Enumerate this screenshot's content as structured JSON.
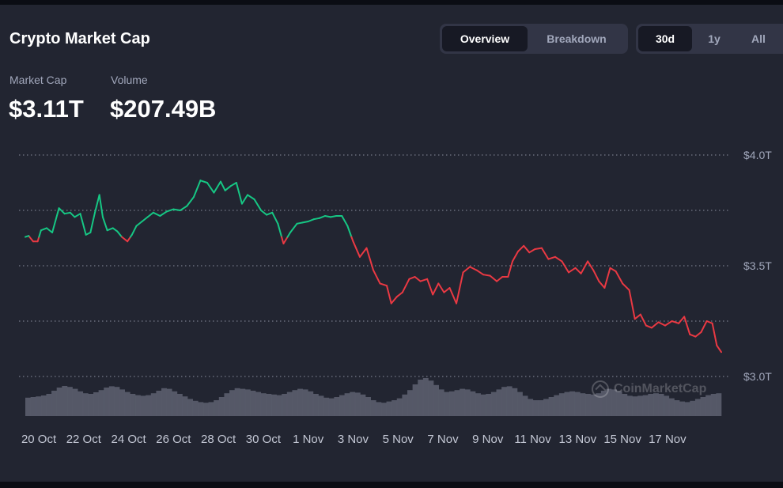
{
  "header": {
    "title": "Crypto Market Cap",
    "view_tabs": [
      {
        "label": "Overview",
        "active": true
      },
      {
        "label": "Breakdown",
        "active": false
      }
    ],
    "range_tabs": [
      {
        "label": "30d",
        "active": true
      },
      {
        "label": "1y",
        "active": false
      },
      {
        "label": "All",
        "active": false
      }
    ]
  },
  "metrics": {
    "market_cap": {
      "label": "Market Cap",
      "value": "$3.11T"
    },
    "volume": {
      "label": "Volume",
      "value": "$207.49B"
    }
  },
  "watermark": {
    "text": "CoinMarketCap",
    "icon": "coinmarketcap-logo-icon"
  },
  "colors": {
    "background": "#222531",
    "up": "#16c784",
    "down": "#ea3943",
    "volume": "#5b5e6e",
    "grid": "#8a8f9f",
    "text_muted": "#a1a7bb"
  },
  "chart_data": {
    "type": "line",
    "baseline": 3.63,
    "y_tick_labels": [
      "$4.0T",
      "$3.5T",
      "$3.0T"
    ],
    "y_tick_values": [
      4.0,
      3.5,
      3.0
    ],
    "ylim": [
      3.0,
      4.0
    ],
    "x_tick_labels": [
      "20 Oct",
      "22 Oct",
      "24 Oct",
      "26 Oct",
      "28 Oct",
      "30 Oct",
      "1 Nov",
      "3 Nov",
      "5 Nov",
      "7 Nov",
      "9 Nov",
      "11 Nov",
      "13 Nov",
      "15 Nov",
      "17 Nov"
    ],
    "xlim": [
      -0.6,
      30.4
    ],
    "grid": true,
    "series": [
      {
        "x": [
          -0.6,
          -0.45,
          -0.25,
          -0.05,
          0.1,
          0.35,
          0.6,
          0.9,
          1.15,
          1.4,
          1.6,
          1.85,
          2.1,
          2.3,
          2.5,
          2.7,
          2.85,
          3.05,
          3.3,
          3.5,
          3.7,
          3.95,
          4.15,
          4.35,
          4.6,
          4.85,
          5.1,
          5.4,
          5.7,
          6.0,
          6.3,
          6.6,
          6.9,
          7.2,
          7.5,
          7.8,
          8.1,
          8.3,
          8.55,
          8.8,
          9.05,
          9.3,
          9.6,
          9.9,
          10.15,
          10.4,
          10.65,
          10.9,
          11.2,
          11.5,
          11.75,
          12.0,
          12.25,
          12.5,
          12.75,
          13.0,
          13.25,
          13.5,
          13.75,
          14.0,
          14.3,
          14.6,
          14.9,
          15.2,
          15.5,
          15.7,
          15.95,
          16.2,
          16.5,
          16.75,
          17.0,
          17.3,
          17.55,
          17.8,
          18.05,
          18.3,
          18.6,
          18.9,
          19.2,
          19.5,
          19.8,
          20.1,
          20.4,
          20.65,
          20.9,
          21.1,
          21.35,
          21.6,
          21.85,
          22.1,
          22.4,
          22.7,
          23.0,
          23.3,
          23.6,
          23.9,
          24.15,
          24.45,
          24.7,
          24.95,
          25.2,
          25.45,
          25.7,
          26.0,
          26.3,
          26.55,
          26.8,
          27.05,
          27.3,
          27.6,
          27.9,
          28.2,
          28.5,
          28.75,
          29.0,
          29.25,
          29.5,
          29.75,
          30.0,
          30.2,
          30.4
        ],
        "y": [
          3.63,
          3.635,
          3.61,
          3.61,
          3.66,
          3.67,
          3.65,
          3.76,
          3.735,
          3.74,
          3.72,
          3.735,
          3.64,
          3.65,
          3.74,
          3.82,
          3.72,
          3.66,
          3.67,
          3.655,
          3.63,
          3.61,
          3.64,
          3.68,
          3.7,
          3.72,
          3.74,
          3.725,
          3.745,
          3.755,
          3.75,
          3.77,
          3.81,
          3.885,
          3.875,
          3.83,
          3.88,
          3.84,
          3.86,
          3.875,
          3.78,
          3.82,
          3.8,
          3.75,
          3.73,
          3.74,
          3.69,
          3.6,
          3.65,
          3.69,
          3.695,
          3.7,
          3.71,
          3.715,
          3.725,
          3.72,
          3.725,
          3.725,
          3.68,
          3.61,
          3.54,
          3.58,
          3.48,
          3.42,
          3.41,
          3.33,
          3.36,
          3.38,
          3.44,
          3.45,
          3.43,
          3.44,
          3.37,
          3.42,
          3.38,
          3.4,
          3.33,
          3.47,
          3.495,
          3.48,
          3.46,
          3.455,
          3.43,
          3.45,
          3.45,
          3.52,
          3.565,
          3.59,
          3.56,
          3.575,
          3.58,
          3.53,
          3.54,
          3.52,
          3.47,
          3.49,
          3.465,
          3.52,
          3.48,
          3.43,
          3.4,
          3.49,
          3.475,
          3.42,
          3.39,
          3.26,
          3.28,
          3.23,
          3.22,
          3.245,
          3.23,
          3.25,
          3.24,
          3.27,
          3.19,
          3.18,
          3.2,
          3.25,
          3.24,
          3.14,
          3.11
        ]
      }
    ],
    "volume_relative": [
      0.38,
      0.4,
      0.42,
      0.45,
      0.5,
      0.6,
      0.7,
      0.75,
      0.72,
      0.66,
      0.58,
      0.52,
      0.5,
      0.55,
      0.62,
      0.7,
      0.74,
      0.72,
      0.64,
      0.56,
      0.5,
      0.46,
      0.44,
      0.46,
      0.52,
      0.6,
      0.68,
      0.66,
      0.58,
      0.5,
      0.42,
      0.34,
      0.28,
      0.24,
      0.22,
      0.24,
      0.3,
      0.4,
      0.52,
      0.62,
      0.68,
      0.66,
      0.64,
      0.6,
      0.56,
      0.52,
      0.5,
      0.48,
      0.46,
      0.5,
      0.56,
      0.62,
      0.66,
      0.64,
      0.58,
      0.5,
      0.44,
      0.38,
      0.36,
      0.4,
      0.46,
      0.52,
      0.56,
      0.54,
      0.48,
      0.4,
      0.3,
      0.24,
      0.22,
      0.26,
      0.3,
      0.36,
      0.48,
      0.62,
      0.8,
      0.95,
      1.0,
      0.92,
      0.78,
      0.64,
      0.56,
      0.58,
      0.62,
      0.66,
      0.64,
      0.58,
      0.52,
      0.48,
      0.5,
      0.56,
      0.64,
      0.72,
      0.74,
      0.68,
      0.56,
      0.44,
      0.34,
      0.3,
      0.3,
      0.34,
      0.4,
      0.46,
      0.52,
      0.56,
      0.58,
      0.56,
      0.52,
      0.5,
      0.48,
      0.52,
      0.6,
      0.66,
      0.64,
      0.58,
      0.5,
      0.44,
      0.42,
      0.44,
      0.46,
      0.5,
      0.52,
      0.5,
      0.44,
      0.36,
      0.3,
      0.26,
      0.24,
      0.28,
      0.34,
      0.4,
      0.46,
      0.5,
      0.52
    ]
  }
}
